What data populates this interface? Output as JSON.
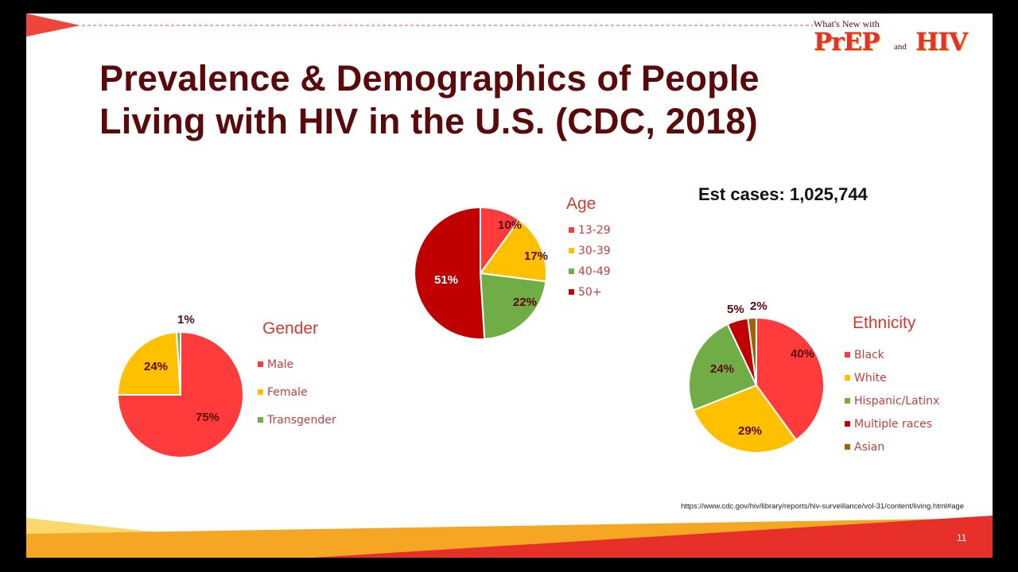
{
  "slide": {
    "title_lines": [
      "Prevalence & Demographics of People",
      "Living with HIV in the U.S. (CDC, 2018)"
    ],
    "est_cases": "Est cases: 1,025,744",
    "source_url": "https://www.cdc.gov/hiv/library/reports/hiv-surveillance/vol-31/content/living.html#age",
    "page_number": "11"
  },
  "logo": {
    "top_text": "What's New with",
    "prep": "PrEP",
    "and": "and",
    "hiv": "HIV"
  },
  "colors": {
    "title": "#5a0a0a",
    "red": "#ff3b3b",
    "yellow": "#ffc000",
    "green": "#70ad47",
    "dark_red": "#c00000",
    "brown": "#9c6500",
    "accent_orange": "#f5a623"
  },
  "chart_data": [
    {
      "type": "pie",
      "title": "Gender",
      "categories": [
        "Male",
        "Female",
        "Transgender"
      ],
      "values": [
        75,
        24,
        1
      ],
      "labels": [
        "75%",
        "24%",
        "1%"
      ],
      "colors": [
        "#ff3b3b",
        "#ffc000",
        "#70ad47"
      ],
      "legend": "right"
    },
    {
      "type": "pie",
      "title": "Age",
      "categories": [
        "13-29",
        "30-39",
        "40-49",
        "50+"
      ],
      "values": [
        10,
        17,
        22,
        51
      ],
      "labels": [
        "10%",
        "17%",
        "22%",
        "51%"
      ],
      "colors": [
        "#ff3b3b",
        "#ffc000",
        "#70ad47",
        "#c00000"
      ],
      "legend": "right"
    },
    {
      "type": "pie",
      "title": "Ethnicity",
      "categories": [
        "Black",
        "White",
        "Hispanic/Latinx",
        "Multiple races",
        "Asian"
      ],
      "values": [
        40,
        29,
        24,
        5,
        2
      ],
      "labels": [
        "40%",
        "29%",
        "24%",
        "5%",
        "2%"
      ],
      "colors": [
        "#ff3b3b",
        "#ffc000",
        "#70ad47",
        "#c00000",
        "#9c6500"
      ],
      "legend": "right"
    }
  ]
}
